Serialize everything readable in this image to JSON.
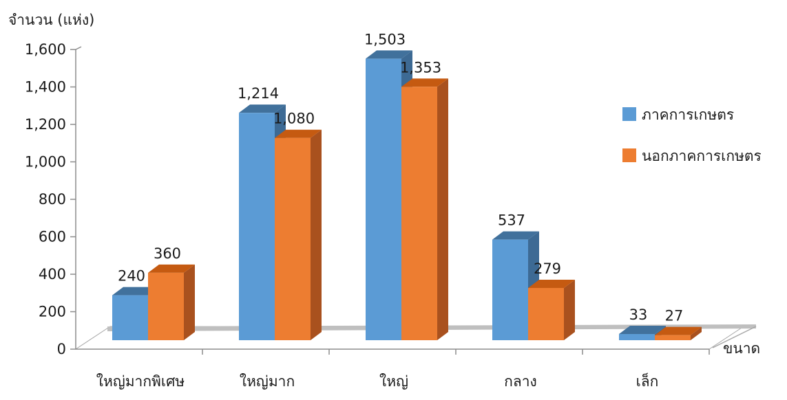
{
  "chart_data": {
    "type": "bar",
    "ylabel": "จำนวน (แห่ง)",
    "xlabel": "ขนาด",
    "categories": [
      "ใหญ่มากพิเศษ",
      "ใหญ่มาก",
      "ใหญ่",
      "กลาง",
      "เล็ก"
    ],
    "series": [
      {
        "name": "ภาคการเกษตร",
        "values": [
          240,
          1214,
          1503,
          537,
          33
        ],
        "labels": [
          "240",
          "1,214",
          "1,503",
          "537",
          "33"
        ],
        "color": "#5B9BD5",
        "top": "#41719C",
        "side": "#3D6A94"
      },
      {
        "name": "นอกภาคการเกษตร",
        "values": [
          360,
          1080,
          1353,
          279,
          27
        ],
        "labels": [
          "360",
          "1,080",
          "1,353",
          "279",
          "27"
        ],
        "color": "#ED7D31",
        "top": "#C55A11",
        "side": "#A9511E"
      }
    ],
    "ylim": [
      0,
      1600
    ],
    "yticks": [
      "0",
      "200",
      "400",
      "600",
      "800",
      "1,000",
      "1,200",
      "1,400",
      "1,600"
    ],
    "legend": "right",
    "three_d": true
  }
}
